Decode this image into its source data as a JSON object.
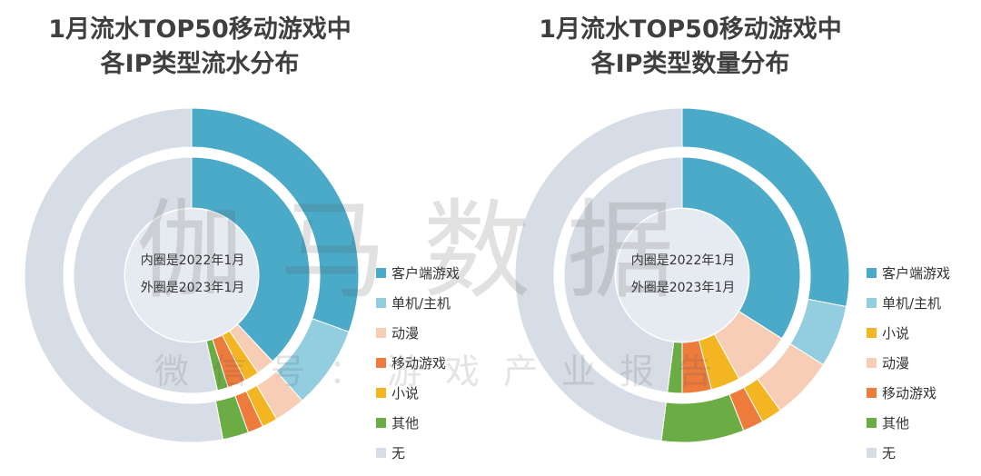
{
  "watermark": {
    "main": "伽马数据",
    "sub": "微信号：游戏产业报告"
  },
  "legend_colors": {
    "客户端游戏": "#4aaac8",
    "单机/主机": "#92cde0",
    "动漫": "#f8cdb6",
    "移动游戏": "#ec7b3c",
    "小说": "#f3b622",
    "其他": "#6bac45",
    "无": "#d7dde6"
  },
  "chart_data": [
    {
      "type": "donut",
      "title_lines": [
        "1月流水TOP50移动游戏中",
        "各IP类型流水分布"
      ],
      "center_note": [
        "内圈是2022年1月",
        "外圈是2023年1月"
      ],
      "legend": [
        "客户端游戏",
        "单机/主机",
        "动漫",
        "移动游戏",
        "小说",
        "其他",
        "无"
      ],
      "series": [
        {
          "name": "2023年1月",
          "ring": "outer",
          "slices": [
            {
              "label": "客户端游戏",
              "value": 30.5
            },
            {
              "label": "单机/主机",
              "value": 8.0
            },
            {
              "label": "动漫",
              "value": 3.0
            },
            {
              "label": "小说",
              "value": 1.5
            },
            {
              "label": "移动游戏",
              "value": 1.5
            },
            {
              "label": "其他",
              "value": 2.5
            },
            {
              "label": "无",
              "value": 53.0
            }
          ]
        },
        {
          "name": "2022年1月",
          "ring": "inner",
          "slices": [
            {
              "label": "客户端游戏",
              "value": 38.0
            },
            {
              "label": "动漫",
              "value": 2.5
            },
            {
              "label": "小说",
              "value": 2.0
            },
            {
              "label": "移动游戏",
              "value": 2.5
            },
            {
              "label": "其他",
              "value": 1.5
            },
            {
              "label": "无",
              "value": 53.5
            }
          ]
        }
      ]
    },
    {
      "type": "donut",
      "title_lines": [
        "1月流水TOP50移动游戏中",
        "各IP类型数量分布"
      ],
      "center_note": [
        "内圈是2022年1月",
        "外圈是2023年1月"
      ],
      "legend": [
        "客户端游戏",
        "单机/主机",
        "小说",
        "动漫",
        "移动游戏",
        "其他",
        "无"
      ],
      "series": [
        {
          "name": "2023年1月",
          "ring": "outer",
          "slices": [
            {
              "label": "客户端游戏",
              "value": 28.0
            },
            {
              "label": "单机/主机",
              "value": 6.0
            },
            {
              "label": "动漫",
              "value": 6.0
            },
            {
              "label": "小说",
              "value": 2.0
            },
            {
              "label": "移动游戏",
              "value": 2.0
            },
            {
              "label": "其他",
              "value": 8.0
            },
            {
              "label": "无",
              "value": 48.0
            }
          ]
        },
        {
          "name": "2022年1月",
          "ring": "inner",
          "slices": [
            {
              "label": "客户端游戏",
              "value": 34.0
            },
            {
              "label": "动漫",
              "value": 8.0
            },
            {
              "label": "小说",
              "value": 4.0
            },
            {
              "label": "移动游戏",
              "value": 4.0
            },
            {
              "label": "其他",
              "value": 2.0
            },
            {
              "label": "无",
              "value": 48.0
            }
          ]
        }
      ]
    }
  ]
}
